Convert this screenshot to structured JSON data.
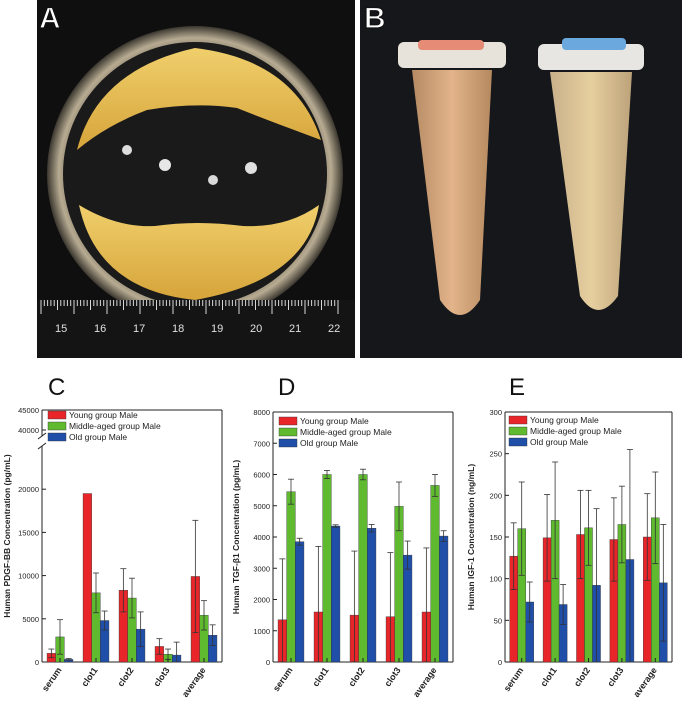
{
  "panels": {
    "a": {
      "letter": "A",
      "ruler_labels": [
        "15",
        "16",
        "17",
        "18",
        "19",
        "20",
        "21",
        "22"
      ]
    },
    "b": {
      "letter": "B"
    }
  },
  "colors": {
    "young": "#e8262a",
    "middle": "#5fba2f",
    "old": "#1f4fa8",
    "yellow": "#e2b24a"
  },
  "chart_data": [
    {
      "panel": "C",
      "type": "bar",
      "ylabel": "Human PDGF-BB Concentration (pg/mL)",
      "categories": [
        "serum",
        "clot1",
        "clot2",
        "clot3",
        "average"
      ],
      "axis_break": true,
      "ylim": [
        0,
        25000
      ],
      "ylim_upper": [
        40000,
        45000
      ],
      "yticks": [
        "0",
        "5000",
        "10000",
        "15000",
        "20000"
      ],
      "yticks_upper": [
        "40000",
        "45000"
      ],
      "series": [
        {
          "name": "Young group Male",
          "values": [
            1000,
            19500,
            8300,
            1800,
            9900
          ],
          "errors": [
            500,
            0,
            2500,
            900,
            6500
          ]
        },
        {
          "name": "Middle-aged group Male",
          "values": [
            2900,
            8000,
            7400,
            900,
            5400
          ],
          "errors": [
            2000,
            2300,
            2300,
            600,
            1700
          ]
        },
        {
          "name": "Old group Male",
          "values": [
            300,
            4800,
            3800,
            800,
            3100
          ],
          "errors": [
            100,
            1100,
            2000,
            1500,
            1200
          ]
        }
      ]
    },
    {
      "panel": "D",
      "type": "bar",
      "ylabel": "Human TGF-β1 Concentration (pg/mL)",
      "categories": [
        "serum",
        "clot1",
        "clot2",
        "clot3",
        "average"
      ],
      "ylim": [
        0,
        8000
      ],
      "yticks": [
        "0",
        "1000",
        "2000",
        "3000",
        "4000",
        "5000",
        "6000",
        "7000",
        "8000"
      ],
      "series": [
        {
          "name": "Young group Male",
          "values": [
            1350,
            1600,
            1500,
            1450,
            1600
          ],
          "errors": [
            1950,
            2100,
            2050,
            2050,
            2050
          ]
        },
        {
          "name": "Middle-aged group Male",
          "values": [
            5450,
            6000,
            6000,
            4980,
            5650
          ],
          "errors": [
            400,
            130,
            170,
            780,
            350
          ]
        },
        {
          "name": "Old group Male",
          "values": [
            3850,
            4350,
            4280,
            3420,
            4030
          ],
          "errors": [
            110,
            40,
            120,
            450,
            170
          ]
        }
      ]
    },
    {
      "panel": "E",
      "type": "bar",
      "ylabel": "Human IGF-1 Concentration (ng/mL)",
      "categories": [
        "serum",
        "clot1",
        "clot2",
        "clot3",
        "average"
      ],
      "ylim": [
        0,
        300
      ],
      "yticks": [
        "0",
        "50",
        "100",
        "150",
        "200",
        "250",
        "300"
      ],
      "series": [
        {
          "name": "Young group Male",
          "values": [
            127,
            149,
            153,
            147,
            150
          ],
          "errors": [
            40,
            52,
            53,
            50,
            52
          ]
        },
        {
          "name": "Middle-aged group Male",
          "values": [
            160,
            170,
            161,
            165,
            173
          ],
          "errors": [
            56,
            70,
            45,
            46,
            55
          ]
        },
        {
          "name": "Old group Male",
          "values": [
            72,
            69,
            92,
            123,
            95
          ],
          "errors": [
            24,
            24,
            92,
            132,
            70
          ]
        }
      ]
    }
  ]
}
